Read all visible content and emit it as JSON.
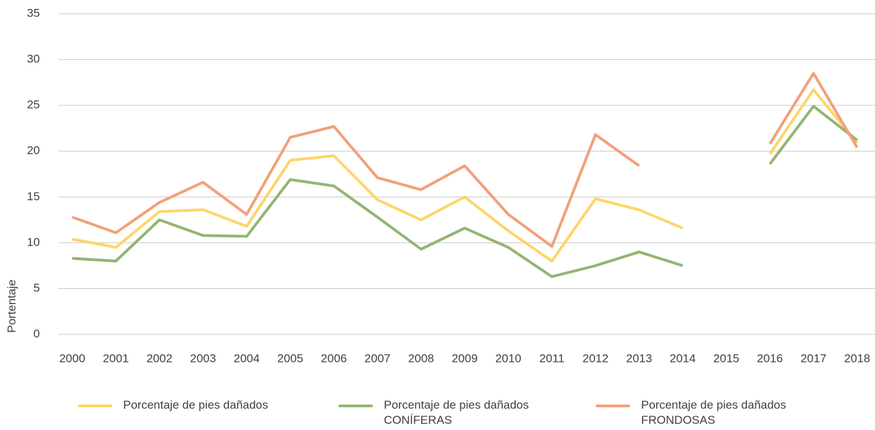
{
  "chart_data": {
    "type": "line",
    "y_label": "Portentaje",
    "categories": [
      "2000",
      "2001",
      "2002",
      "2003",
      "2004",
      "2005",
      "2006",
      "2007",
      "2008",
      "2009",
      "2010",
      "2011",
      "2012",
      "2013",
      "2014",
      "2015",
      "2016",
      "2017",
      "2018"
    ],
    "ylim": [
      0,
      35
    ],
    "yticks": [
      0,
      5,
      10,
      15,
      20,
      25,
      30,
      35
    ],
    "grid": true,
    "legend": "bottom",
    "series": [
      {
        "name": "Porcentaje de pies dañados",
        "color": "#fdd56a",
        "values": [
          10.4,
          9.5,
          13.4,
          13.6,
          11.8,
          19.0,
          19.5,
          14.7,
          12.5,
          15.0,
          11.3,
          8.0,
          14.8,
          13.6,
          11.6,
          null,
          19.7,
          26.7,
          20.9
        ]
      },
      {
        "name": "Porcentaje de pies dañados\nCONÍFERAS",
        "color": "#93b573",
        "values": [
          8.3,
          8.0,
          12.5,
          10.8,
          10.7,
          16.9,
          16.2,
          12.8,
          9.3,
          11.6,
          9.5,
          6.3,
          7.5,
          9.0,
          7.5,
          null,
          18.6,
          24.9,
          21.2
        ]
      },
      {
        "name": "Porcentaje de pies dañados\nFRONDOSAS",
        "color": "#f2a07b",
        "values": [
          12.8,
          11.1,
          14.4,
          16.6,
          13.1,
          21.5,
          22.7,
          17.1,
          15.8,
          18.4,
          13.1,
          9.6,
          21.8,
          18.4,
          null,
          null,
          20.8,
          28.5,
          20.4
        ]
      }
    ]
  }
}
